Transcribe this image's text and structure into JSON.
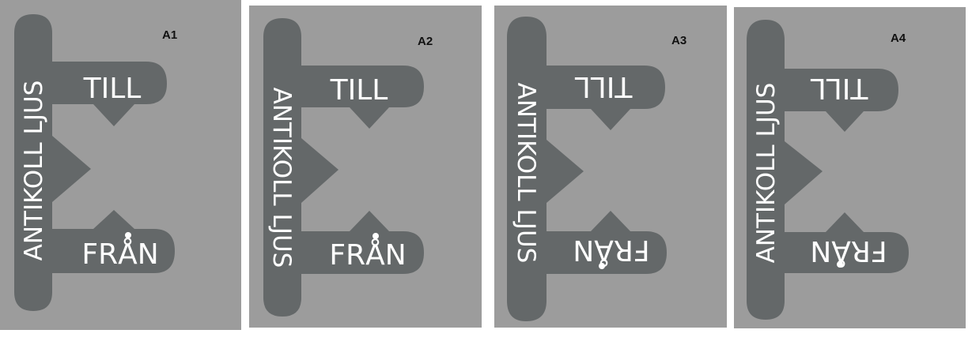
{
  "colors": {
    "background": "#ffffff",
    "panel": "#9c9c9c",
    "plate": "#646869",
    "text": "#ffffff",
    "label": "#111111"
  },
  "panels": [
    {
      "label": "A1",
      "vertical_text": "ANTIKOLL LJUS",
      "top_text": "TILL",
      "bottom_text": "FRÅN",
      "vertical_reading": "bottom-to-top",
      "tabs_upside_down": false
    },
    {
      "label": "A2",
      "vertical_text": "ANTIKOLL LJUS",
      "top_text": "TILL",
      "bottom_text": "FRÅN",
      "vertical_reading": "top-to-bottom",
      "tabs_upside_down": false
    },
    {
      "label": "A3",
      "vertical_text": "ANTIKOLL LJUS",
      "top_text": "TILL",
      "bottom_text": "FRÅN",
      "vertical_reading": "top-to-bottom",
      "tabs_upside_down": true
    },
    {
      "label": "A4",
      "vertical_text": "ANTIKOLL LJUS",
      "top_text": "TILL",
      "bottom_text": "FRÅN",
      "vertical_reading": "bottom-to-top",
      "tabs_upside_down": true
    }
  ]
}
